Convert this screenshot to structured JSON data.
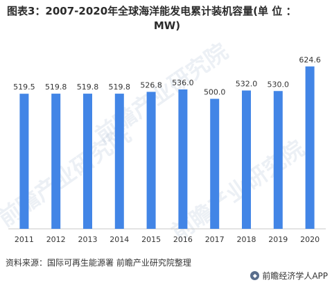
{
  "title_line1": "图表3：2007-2020年全球海洋能发电累计装机容量(单 位 ：",
  "title_line2": "MW)",
  "source": "资料来源：国际可再生能源署 前瞻产业研究院整理",
  "footer_brand": "前瞻经济学人APP",
  "watermark": "前瞻产业研究院",
  "colors": {
    "bar": "#4285e6",
    "axis": "#c8c8c8",
    "text": "#333333"
  },
  "chart_data": {
    "type": "bar",
    "categories": [
      "2011",
      "2012",
      "2013",
      "2014",
      "2015",
      "2016",
      "2017",
      "2018",
      "2019",
      "2020"
    ],
    "values": [
      519.5,
      519.8,
      519.8,
      519.8,
      526.8,
      536.0,
      500.0,
      532.0,
      530.0,
      624.6
    ],
    "value_labels": [
      "519.5",
      "519.8",
      "519.8",
      "519.8",
      "526.8",
      "536.0",
      "500.0",
      "532.0",
      "530.0",
      "624.6"
    ],
    "ylim": [
      0,
      720
    ],
    "grid": false,
    "legend": "none"
  }
}
